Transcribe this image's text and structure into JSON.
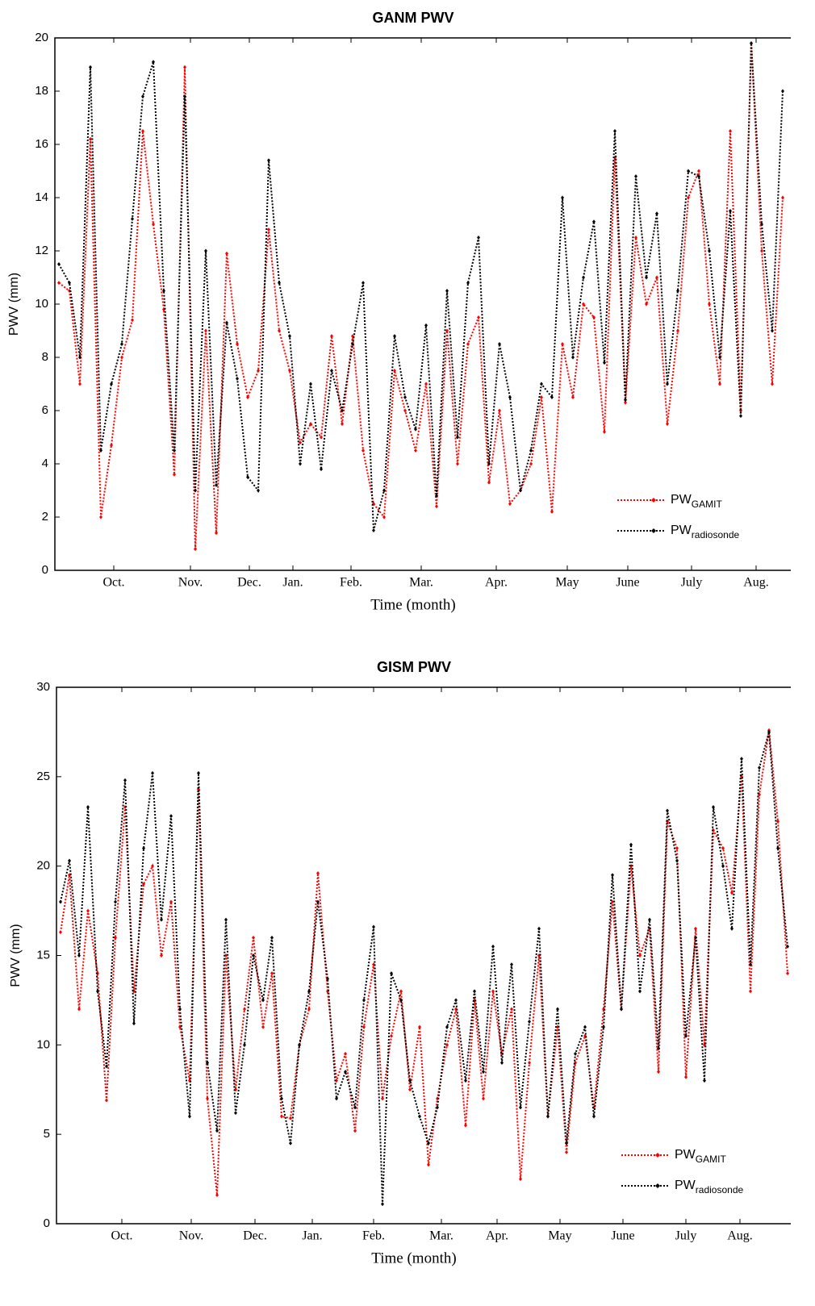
{
  "chart_data": [
    {
      "type": "line",
      "title": "GANM PWV",
      "xlabel": "Time (month)",
      "ylabel": "PWV (mm)",
      "xlim": [
        0,
        912
      ],
      "ylim": [
        0,
        20
      ],
      "yticks": [
        0,
        2,
        4,
        6,
        8,
        10,
        12,
        14,
        16,
        18,
        20
      ],
      "xticks": [
        {
          "value": 73,
          "label": "Oct."
        },
        {
          "value": 168,
          "label": "Nov."
        },
        {
          "value": 241,
          "label": "Dec."
        },
        {
          "value": 295,
          "label": "Jan."
        },
        {
          "value": 367,
          "label": "Feb."
        },
        {
          "value": 454,
          "label": "Mar."
        },
        {
          "value": 547,
          "label": "Apr."
        },
        {
          "value": 635,
          "label": "May"
        },
        {
          "value": 710,
          "label": "June"
        },
        {
          "value": 789,
          "label": "July"
        },
        {
          "value": 869,
          "label": "Aug."
        }
      ],
      "x": [
        5,
        18,
        31,
        44,
        57,
        70,
        83,
        96,
        109,
        122,
        135,
        148,
        161,
        174,
        187,
        200,
        213,
        226,
        239,
        252,
        265,
        278,
        291,
        304,
        317,
        330,
        343,
        356,
        369,
        382,
        395,
        408,
        421,
        434,
        447,
        460,
        473,
        486,
        499,
        512,
        525,
        538,
        551,
        564,
        577,
        590,
        603,
        616,
        629,
        642,
        655,
        668,
        681,
        694,
        707,
        720,
        733,
        746,
        759,
        772,
        785,
        798,
        811,
        824,
        837,
        850,
        863,
        876,
        889,
        902
      ],
      "series": [
        {
          "name": "PW",
          "subscript": "GAMIT",
          "color": "#ff0000",
          "values": [
            10.8,
            10.5,
            7,
            16.2,
            2,
            4.7,
            8,
            9.4,
            16.5,
            13,
            9.8,
            3.6,
            18.9,
            0.8,
            9,
            1.4,
            11.9,
            8.5,
            6.5,
            7.5,
            12.8,
            9,
            7.5,
            4.8,
            5.5,
            5,
            8.8,
            5.5,
            8.8,
            4.5,
            2.5,
            2,
            7.5,
            6,
            4.5,
            7,
            2.4,
            9,
            4,
            8.5,
            9.5,
            3.3,
            6,
            2.5,
            3,
            4,
            6.5,
            2.2,
            8.5,
            6.5,
            10,
            9.5,
            5.2,
            15.5,
            6.3,
            12.5,
            10,
            11,
            5.5,
            9,
            14,
            15,
            10,
            7,
            16.5,
            6,
            19.8,
            12,
            7,
            14
          ]
        },
        {
          "name": "PW",
          "subscript": "radiosonde",
          "color": "#000000",
          "values": [
            11.5,
            10.8,
            8,
            18.9,
            4.5,
            7,
            8.5,
            13.2,
            17.8,
            19.1,
            10.5,
            4.5,
            17.8,
            3,
            12,
            3.2,
            9.3,
            7.2,
            3.5,
            3,
            15.4,
            10.8,
            8.8,
            4,
            7,
            3.8,
            7.5,
            6,
            8.5,
            10.8,
            1.5,
            3,
            8.8,
            6.5,
            5.3,
            9.2,
            2.8,
            10.5,
            5,
            10.8,
            12.5,
            4,
            8.5,
            6.5,
            3,
            4.5,
            7,
            6.5,
            14,
            8,
            11,
            13.1,
            7.8,
            16.5,
            6.4,
            14.8,
            11,
            13.4,
            7,
            10.5,
            15,
            14.8,
            12,
            8,
            13.5,
            5.8,
            19.8,
            13,
            9,
            18
          ]
        }
      ]
    },
    {
      "type": "line",
      "title": "GISM PWV",
      "xlabel": "Time (month)",
      "ylabel": "PWV (mm)",
      "xlim": [
        0,
        910
      ],
      "ylim": [
        0,
        30
      ],
      "yticks": [
        0,
        5,
        10,
        15,
        20,
        25,
        30
      ],
      "xticks": [
        {
          "value": 81,
          "label": "Oct."
        },
        {
          "value": 167,
          "label": "Nov."
        },
        {
          "value": 246,
          "label": "Dec."
        },
        {
          "value": 317,
          "label": "Jan."
        },
        {
          "value": 393,
          "label": "Feb."
        },
        {
          "value": 477,
          "label": "Mar."
        },
        {
          "value": 546,
          "label": "Apr."
        },
        {
          "value": 624,
          "label": "May"
        },
        {
          "value": 702,
          "label": "June"
        },
        {
          "value": 780,
          "label": "July"
        },
        {
          "value": 847,
          "label": "Aug."
        }
      ],
      "x": [
        5,
        16,
        28,
        39,
        51,
        62,
        73,
        85,
        96,
        108,
        119,
        130,
        142,
        153,
        165,
        176,
        187,
        199,
        210,
        222,
        233,
        244,
        256,
        267,
        279,
        290,
        301,
        313,
        324,
        336,
        347,
        358,
        370,
        381,
        393,
        404,
        415,
        427,
        438,
        450,
        461,
        472,
        484,
        495,
        507,
        518,
        529,
        541,
        552,
        564,
        575,
        586,
        598,
        609,
        621,
        632,
        643,
        655,
        666,
        678,
        689,
        700,
        712,
        723,
        735,
        746,
        757,
        769,
        780,
        792,
        803,
        814,
        826,
        837,
        849,
        860,
        871,
        883,
        894,
        906
      ],
      "series": [
        {
          "name": "PW",
          "subscript": "GAMIT",
          "color": "#ff0000",
          "values": [
            16.3,
            19.5,
            12,
            17.5,
            14,
            6.9,
            16,
            23.3,
            13,
            19,
            20,
            15,
            18,
            11,
            8,
            24.3,
            7,
            1.6,
            15,
            7.5,
            12,
            16,
            11,
            14,
            6,
            5.9,
            10,
            12,
            19.6,
            13,
            8,
            9.5,
            5.2,
            11,
            14.5,
            7,
            10.5,
            13,
            7.5,
            11,
            3.3,
            7,
            10,
            12,
            5.5,
            12.5,
            7,
            13,
            9.5,
            12,
            2.5,
            9,
            15,
            6,
            11,
            4,
            9,
            10.5,
            6.5,
            12,
            18,
            12,
            20,
            15,
            16.5,
            8.5,
            22.5,
            21,
            8.2,
            16.5,
            10,
            22,
            21,
            18.5,
            25,
            13,
            24,
            27.6,
            22.5,
            14
          ]
        },
        {
          "name": "PW",
          "subscript": "radiosonde",
          "color": "#000000",
          "values": [
            18,
            20.3,
            15,
            23.3,
            13,
            8.8,
            18,
            24.8,
            11.2,
            21,
            25.2,
            17,
            22.8,
            12,
            6,
            25.2,
            9,
            5.2,
            17,
            6.2,
            10,
            15,
            12.5,
            16,
            7,
            4.5,
            10,
            13,
            18,
            13.7,
            7,
            8.5,
            6.5,
            12.5,
            16.6,
            1.1,
            14,
            12.5,
            8,
            6,
            4.5,
            6.5,
            11,
            12.5,
            8,
            13,
            8.5,
            15.5,
            9,
            14.5,
            6.5,
            11.3,
            16.5,
            6,
            12,
            4.5,
            9.5,
            11,
            6,
            11,
            19.5,
            12,
            21.2,
            13,
            17,
            9.8,
            23.1,
            20.3,
            10.5,
            16,
            8,
            23.3,
            20,
            16.5,
            26,
            14.5,
            25.5,
            27.5,
            21,
            15.5
          ]
        }
      ]
    }
  ]
}
